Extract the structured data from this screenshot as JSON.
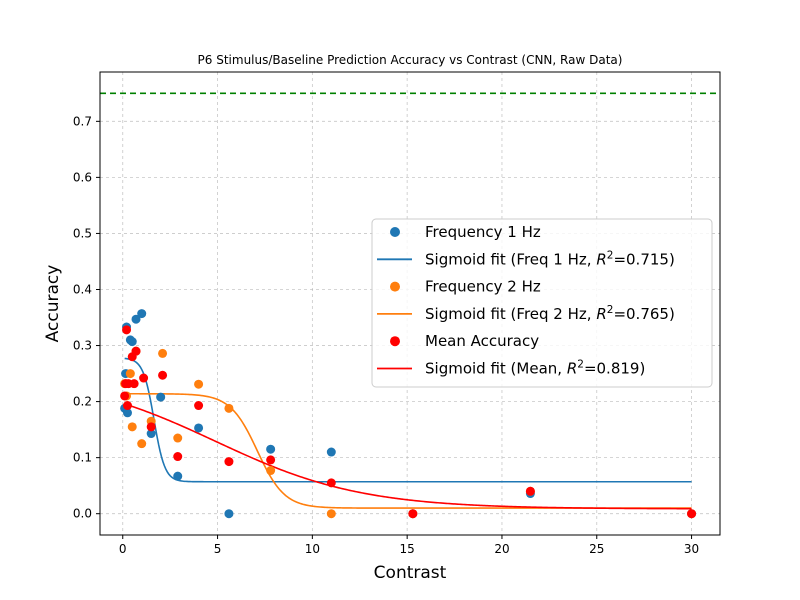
{
  "chart_data": {
    "type": "scatter",
    "title": "P6 Stimulus/Baseline Prediction Accuracy vs Contrast (CNN, Raw Data)",
    "xlabel": "Contrast",
    "ylabel": "Accuracy",
    "xlim": [
      -1.2,
      31.5
    ],
    "ylim": [
      -0.038,
      0.788
    ],
    "x_ticks": [
      0,
      5,
      10,
      15,
      20,
      25,
      30
    ],
    "y_ticks": [
      0.0,
      0.1,
      0.2,
      0.3,
      0.4,
      0.5,
      0.6,
      0.7
    ],
    "grid": true,
    "legend_position": "center-right",
    "reference_line": {
      "y": 0.75,
      "style": "dashed",
      "color": "#008000"
    },
    "series": [
      {
        "name": "Frequency 1 Hz",
        "kind": "scatter",
        "color": "#1f77b4",
        "points": [
          [
            0.1,
            0.188
          ],
          [
            0.15,
            0.25
          ],
          [
            0.2,
            0.333
          ],
          [
            0.25,
            0.18
          ],
          [
            0.4,
            0.31
          ],
          [
            0.5,
            0.307
          ],
          [
            0.7,
            0.347
          ],
          [
            1.0,
            0.357
          ],
          [
            1.5,
            0.143
          ],
          [
            2.0,
            0.208
          ],
          [
            2.9,
            0.067
          ],
          [
            4.0,
            0.153
          ],
          [
            5.6,
            0.0
          ],
          [
            7.8,
            0.115
          ],
          [
            11.0,
            0.11
          ],
          [
            15.3,
            0.0
          ],
          [
            21.5,
            0.036
          ],
          [
            30.0,
            0.0
          ]
        ]
      },
      {
        "name": "Sigmoid fit (Freq 1 Hz, R²=0.715)",
        "label_main": "Sigmoid fit (Freq 1 Hz, ",
        "label_r2": "=0.715)",
        "kind": "fit",
        "color": "#1f77b4",
        "params": {
          "bottom": 0.057,
          "top": 0.278,
          "x0": 1.65,
          "k": 3.5
        },
        "x_range": [
          0.1,
          30
        ]
      },
      {
        "name": "Frequency 2 Hz",
        "kind": "scatter",
        "color": "#ff7f0e",
        "points": [
          [
            0.1,
            0.232
          ],
          [
            0.2,
            0.21
          ],
          [
            0.4,
            0.25
          ],
          [
            0.5,
            0.155
          ],
          [
            0.7,
            0.29
          ],
          [
            1.0,
            0.125
          ],
          [
            1.5,
            0.165
          ],
          [
            2.1,
            0.286
          ],
          [
            2.9,
            0.135
          ],
          [
            4.0,
            0.231
          ],
          [
            5.6,
            0.188
          ],
          [
            7.8,
            0.077
          ],
          [
            11.0,
            0.0
          ],
          [
            15.3,
            0.0
          ],
          [
            21.5,
            0.04
          ],
          [
            30.0,
            0.0
          ]
        ]
      },
      {
        "name": "Sigmoid fit (Freq 2 Hz, R²=0.765)",
        "label_main": "Sigmoid fit (Freq 2 Hz, ",
        "label_r2": "=0.765)",
        "kind": "fit",
        "color": "#ff7f0e",
        "params": {
          "bottom": 0.01,
          "top": 0.214,
          "x0": 7.1,
          "k": 1.4
        },
        "x_range": [
          0.1,
          30
        ]
      },
      {
        "name": "Mean Accuracy",
        "kind": "scatter",
        "color": "#ff0000",
        "points": [
          [
            0.1,
            0.21
          ],
          [
            0.15,
            0.232
          ],
          [
            0.2,
            0.328
          ],
          [
            0.25,
            0.193
          ],
          [
            0.3,
            0.232
          ],
          [
            0.5,
            0.28
          ],
          [
            0.6,
            0.232
          ],
          [
            0.7,
            0.29
          ],
          [
            1.1,
            0.242
          ],
          [
            1.5,
            0.155
          ],
          [
            2.1,
            0.247
          ],
          [
            2.9,
            0.102
          ],
          [
            4.0,
            0.193
          ],
          [
            5.6,
            0.093
          ],
          [
            7.8,
            0.096
          ],
          [
            11.0,
            0.055
          ],
          [
            15.3,
            0.0
          ],
          [
            21.5,
            0.04
          ],
          [
            30.0,
            0.0
          ]
        ]
      },
      {
        "name": "Sigmoid fit (Mean, R²=0.819)",
        "label_main": "Sigmoid fit (Mean, ",
        "label_r2": "=0.819)",
        "kind": "fit",
        "color": "#ff0000",
        "params": {
          "bottom": 0.0086,
          "top": 0.2495,
          "x0": 4.9,
          "k": 0.26
        },
        "x_range": [
          0.1,
          30
        ]
      }
    ]
  }
}
